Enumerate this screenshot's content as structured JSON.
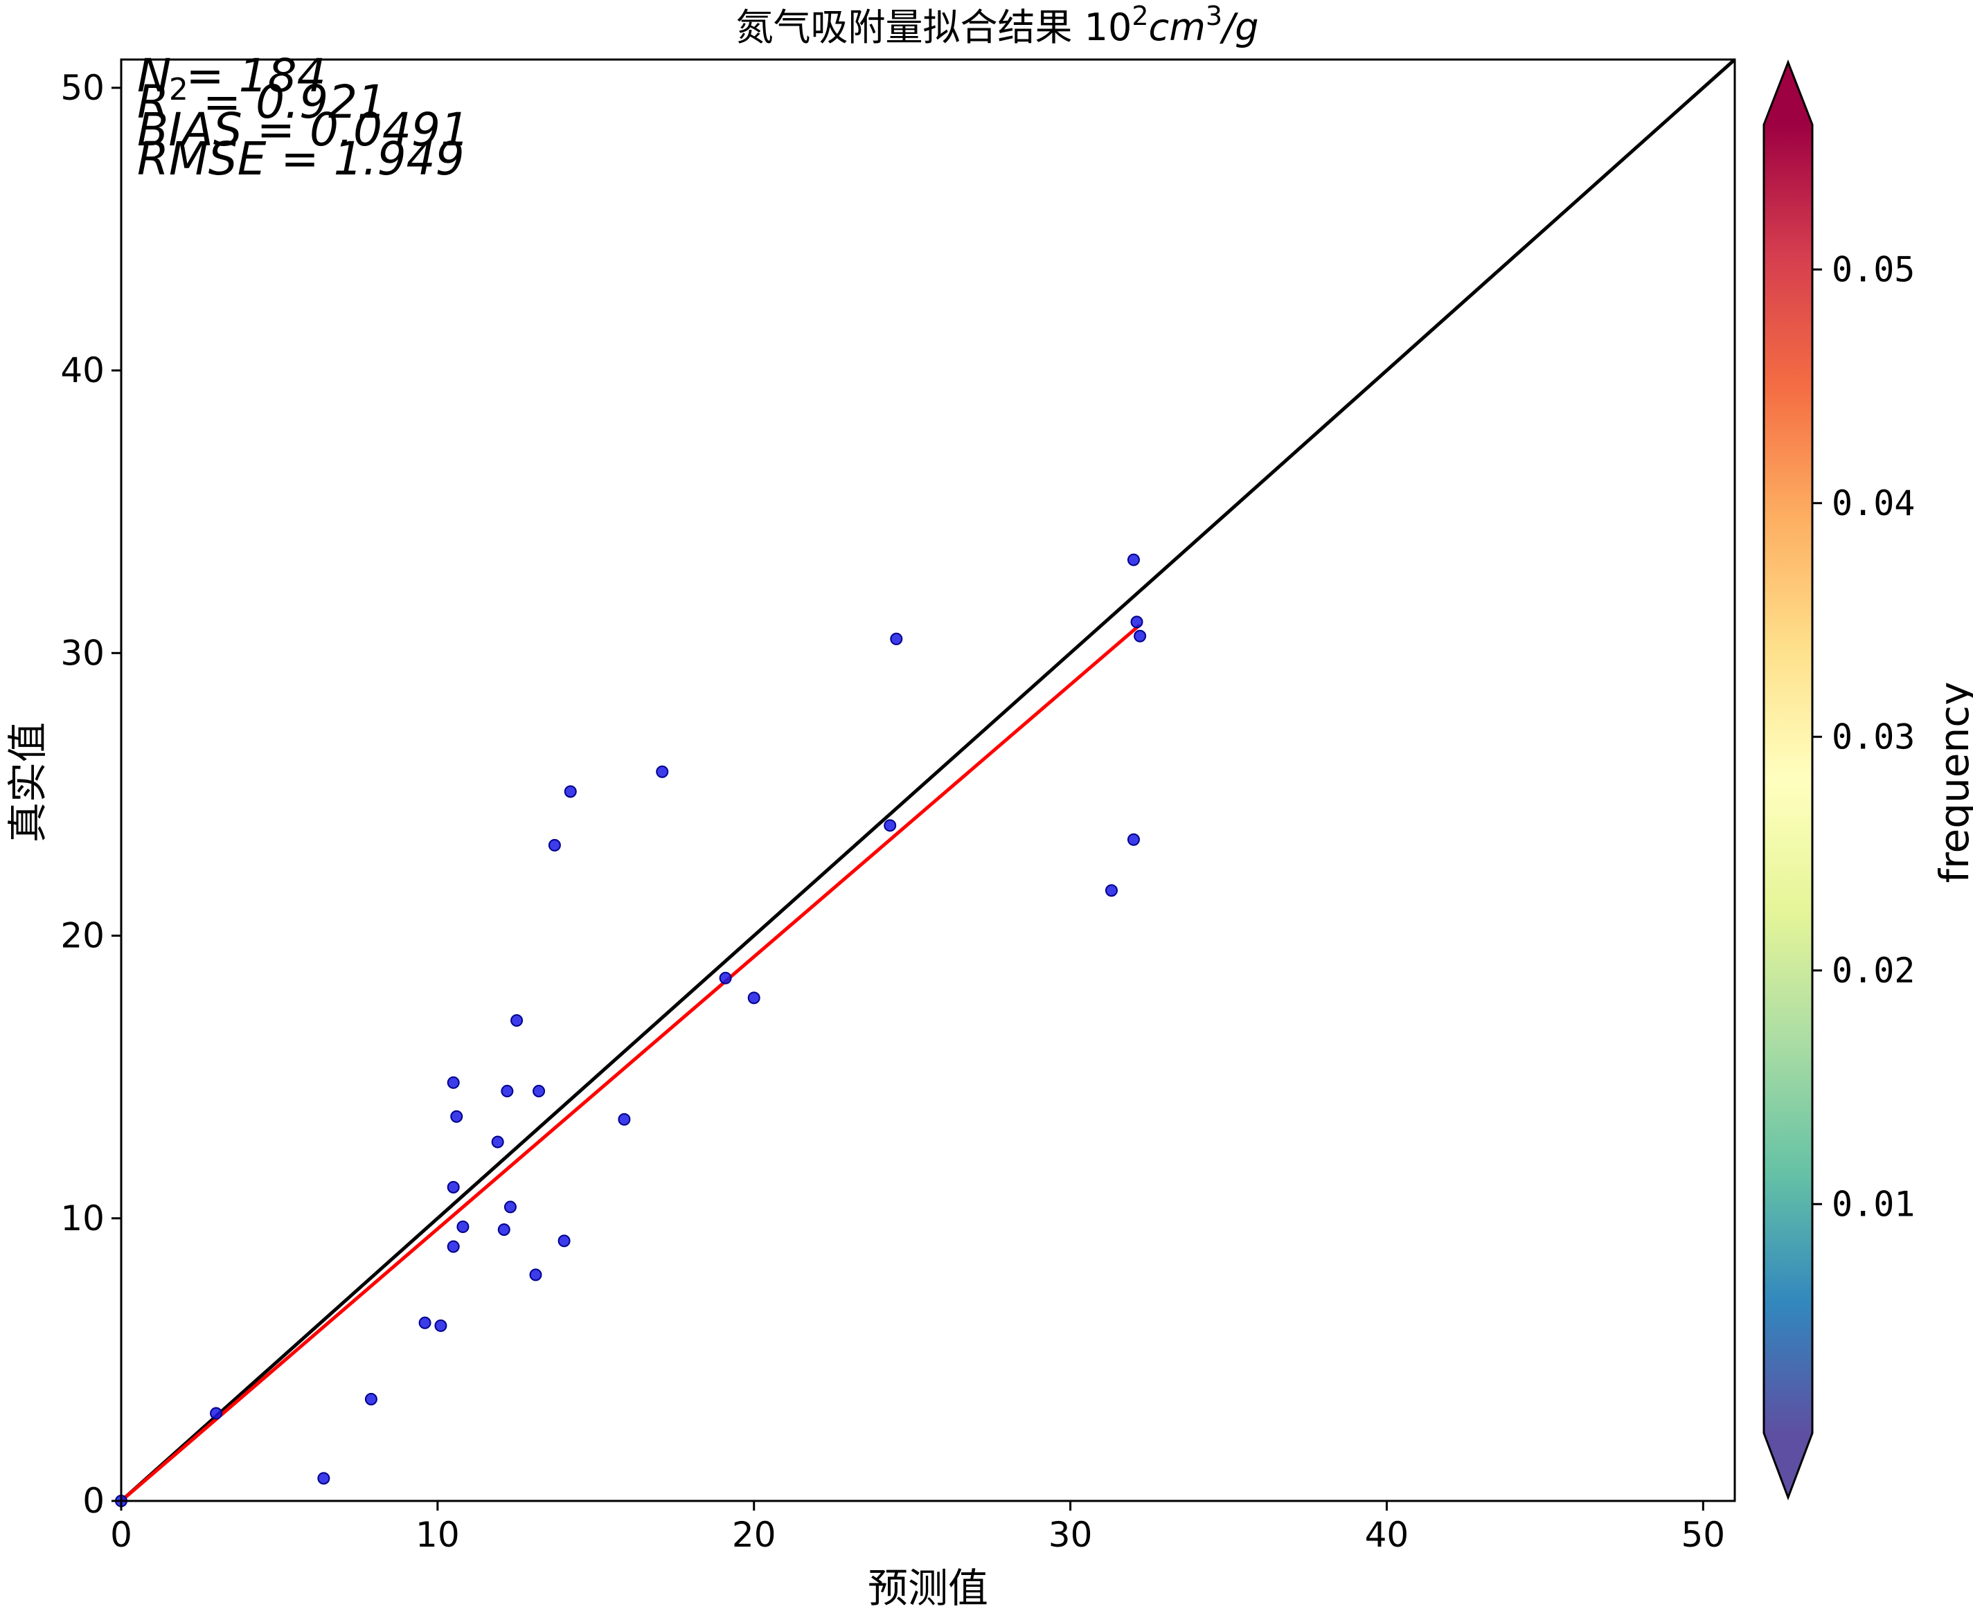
{
  "chart_data": {
    "type": "scatter",
    "title": "氮气吸附量拟合结果",
    "title_unit": {
      "base": "10",
      "exp1": "2",
      "mid": "cm",
      "exp2": "3",
      "tail": "/g"
    },
    "xlabel": "预测值",
    "ylabel": "真实值",
    "xlim": [
      0,
      51
    ],
    "ylim": [
      0,
      51
    ],
    "xticks": [
      0,
      10,
      20,
      30,
      40,
      50
    ],
    "yticks": [
      0,
      10,
      20,
      30,
      40,
      50
    ],
    "stats": {
      "n": "N = 184",
      "r2_base": "R",
      "r2_exp": "2",
      "r2_value": " = 0.921",
      "bias": "BIAS = 0.0491",
      "rmse": "RMSE = 1.949"
    },
    "identity_line": {
      "x": [
        0,
        51
      ],
      "y": [
        0,
        51
      ],
      "color": "#000000"
    },
    "fit_line": {
      "x": [
        0,
        32.2
      ],
      "y": [
        0,
        31.0
      ],
      "color": "#ff0000"
    },
    "series": [
      {
        "color": "#1a1ae6",
        "points": [
          [
            0,
            0
          ],
          [
            3.0,
            3.1
          ],
          [
            6.4,
            0.8
          ],
          [
            7.9,
            3.6
          ],
          [
            9.6,
            6.3
          ],
          [
            10.1,
            6.2
          ],
          [
            10.5,
            14.8
          ],
          [
            10.6,
            13.6
          ],
          [
            10.5,
            11.1
          ],
          [
            10.8,
            9.7
          ],
          [
            10.5,
            9.0
          ],
          [
            12.2,
            14.5
          ],
          [
            12.5,
            17.0
          ],
          [
            11.9,
            12.7
          ],
          [
            12.1,
            9.6
          ],
          [
            12.3,
            10.4
          ],
          [
            13.2,
            14.5
          ],
          [
            13.1,
            8.0
          ],
          [
            14.0,
            9.2
          ],
          [
            13.7,
            23.2
          ],
          [
            14.2,
            25.1
          ],
          [
            15.9,
            13.5
          ],
          [
            17.1,
            25.8
          ],
          [
            19.1,
            18.5
          ],
          [
            20.0,
            17.8
          ],
          [
            24.3,
            23.9
          ],
          [
            24.5,
            30.5
          ],
          [
            31.3,
            21.6
          ],
          [
            32.0,
            23.4
          ],
          [
            32.0,
            33.3
          ],
          [
            32.1,
            31.1
          ],
          [
            32.2,
            30.6
          ]
        ]
      }
    ],
    "colorbar": {
      "label": "frequency",
      "ticks": [
        0.01,
        0.02,
        0.03,
        0.04,
        0.05
      ],
      "tick_labels": [
        "0.01",
        "0.02",
        "0.03",
        "0.04",
        "0.05"
      ],
      "range": [
        0.0002,
        0.0562
      ],
      "colormap": [
        "#5e4fa2",
        "#3288bd",
        "#66c2a5",
        "#abdda4",
        "#e6f598",
        "#ffffbf",
        "#fee08b",
        "#fdae61",
        "#f46d43",
        "#d53e4f",
        "#9e0142"
      ]
    }
  }
}
